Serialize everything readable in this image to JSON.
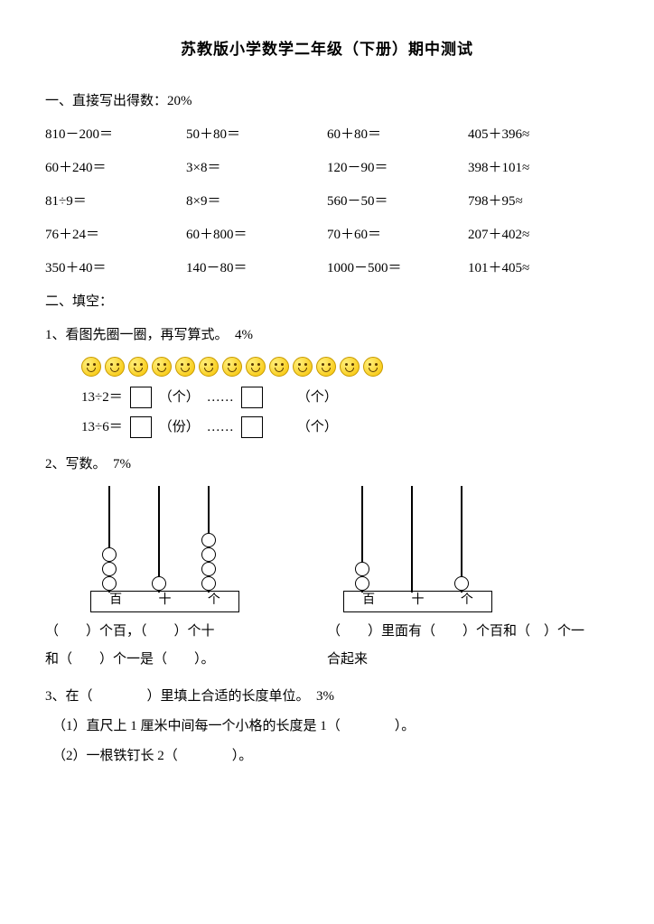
{
  "title": "苏教版小学数学二年级（下册）期中测试",
  "s1": {
    "heading": "一、直接写出得数：20%",
    "rows": [
      [
        "810－200＝",
        "50＋80＝",
        "60＋80＝",
        "405＋396≈"
      ],
      [
        "60＋240＝",
        "3×8＝",
        "120－90＝",
        "398＋101≈"
      ],
      [
        "81÷9＝",
        "8×9＝",
        "560－50＝",
        "798＋95≈"
      ],
      [
        "76＋24＝",
        "60＋800＝",
        "70＋60＝",
        "207＋402≈"
      ],
      [
        "350＋40＝",
        "140－80＝",
        "1000－500＝",
        "101＋405≈"
      ]
    ]
  },
  "s2": {
    "heading": "二、填空：",
    "q1": {
      "prompt": "1、看图先圈一圈，再写算式。　4%",
      "smiley_count": 13,
      "eq1_left": "13÷2＝",
      "eq1_unit1": "（个）",
      "eq1_dots": "……",
      "eq1_unit2": "（个）",
      "eq2_left": "13÷6＝",
      "eq2_unit1": "（份）",
      "eq2_dots": "……",
      "eq2_unit2": "（个）"
    },
    "q2": {
      "prompt": "2、写数。　7%",
      "labels": [
        "百",
        "十",
        "个"
      ],
      "abacus1_beads": {
        "rod1": 3,
        "rod2": 1,
        "rod3": 4
      },
      "abacus2_beads": {
        "rod1": 2,
        "rod2": 0,
        "rod3": 1
      },
      "desc1a": "（　　）个百，（　　）个十",
      "desc1b": "和（　　）个一是（　　）。",
      "desc2a": "（　　）里面有（　　）个百和（　）个一",
      "desc2b": "合起来"
    },
    "q3": {
      "prompt": "3、在（　　　　）里填上合适的长度单位。　3%",
      "line1": "（1）直尺上 1 厘米中间每一个小格的长度是 1（　　　　）。",
      "line2": "（2）一根铁钉长 2（　　　　）。"
    }
  }
}
